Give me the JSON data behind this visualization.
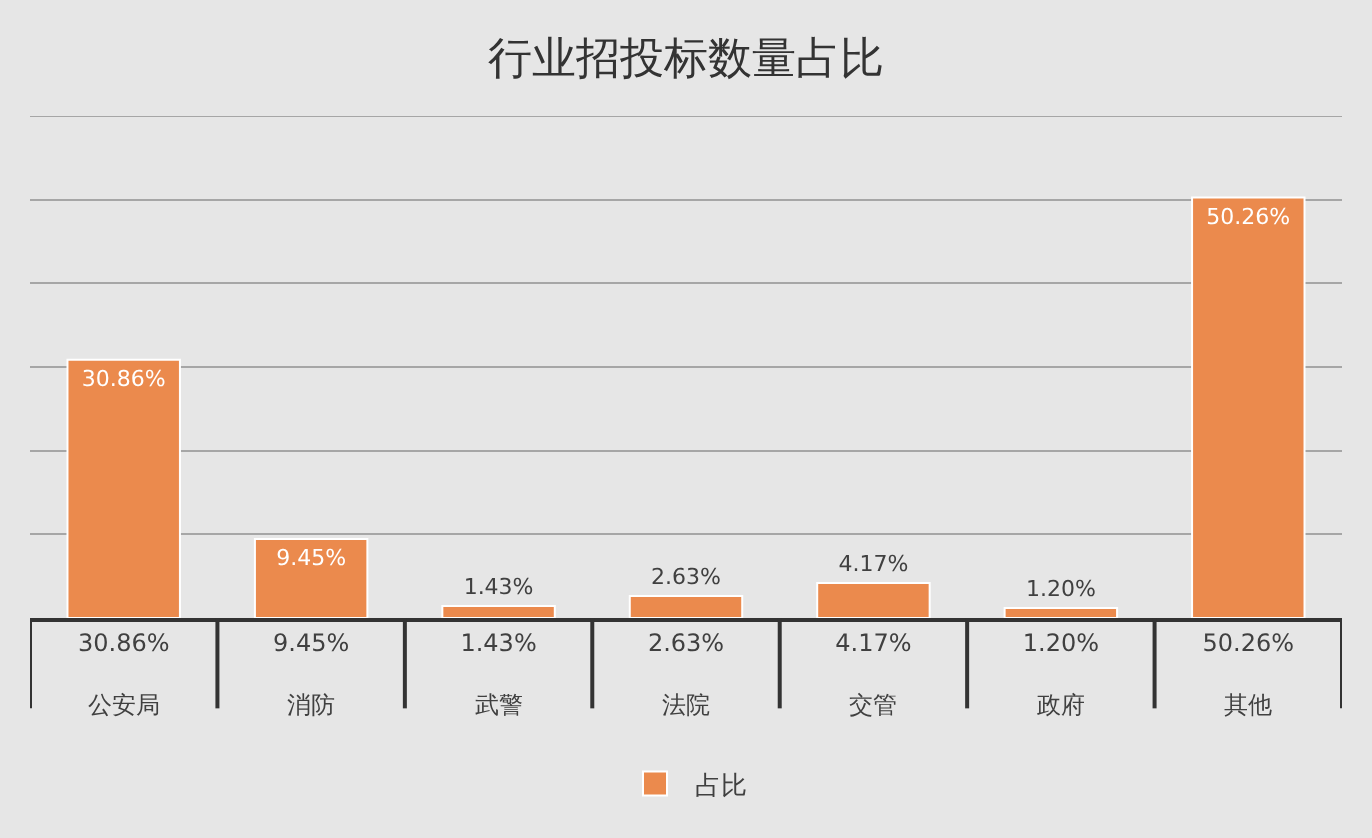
{
  "chart_data": {
    "type": "bar",
    "title": "行业招投标数量占比",
    "categories": [
      "公安局",
      "消防",
      "武警",
      "法院",
      "交管",
      "政府",
      "其他"
    ],
    "series": [
      {
        "name": "占比",
        "color": "#eb8a4d",
        "values": [
          30.86,
          9.45,
          1.43,
          2.63,
          4.17,
          1.2,
          50.26
        ],
        "value_labels": [
          "30.86%",
          "9.45%",
          "1.43%",
          "2.63%",
          "4.17%",
          "1.20%",
          "50.26%"
        ]
      }
    ],
    "ylim": [
      0,
      60
    ],
    "yticks": [
      {
        "value": 0,
        "label": null
      },
      {
        "value": 10,
        "label": null
      },
      {
        "value": 20,
        "label": null
      },
      {
        "value": 30,
        "label": null
      },
      {
        "value": 40,
        "label": null
      },
      {
        "value": 50,
        "label": null
      },
      {
        "value": 60,
        "label": null
      }
    ],
    "grid": "y",
    "legend": "bottom",
    "tick_labels": "x"
  }
}
